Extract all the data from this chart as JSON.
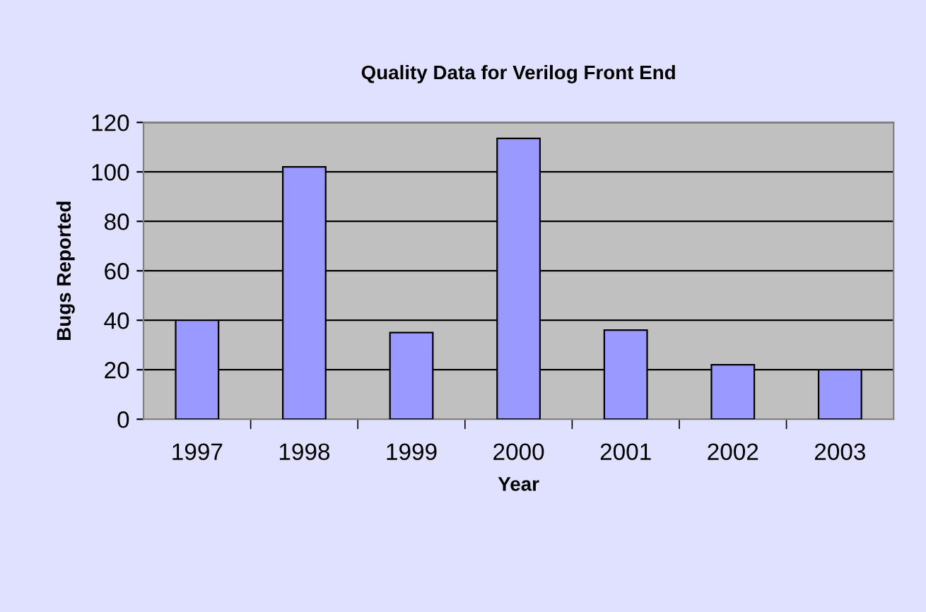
{
  "chart_data": {
    "type": "bar",
    "title": "Quality Data for Verilog Front End",
    "xlabel": "Year",
    "ylabel": "Bugs Reported",
    "categories": [
      "1997",
      "1998",
      "1999",
      "2000",
      "2001",
      "2002",
      "2003"
    ],
    "values": [
      40,
      102,
      35,
      113.5,
      36,
      22,
      20
    ],
    "color": "#9999ff",
    "ylim": [
      0,
      120
    ],
    "yticks": [
      0,
      20,
      40,
      60,
      80,
      100,
      120
    ],
    "grid": "y",
    "legend": false
  }
}
